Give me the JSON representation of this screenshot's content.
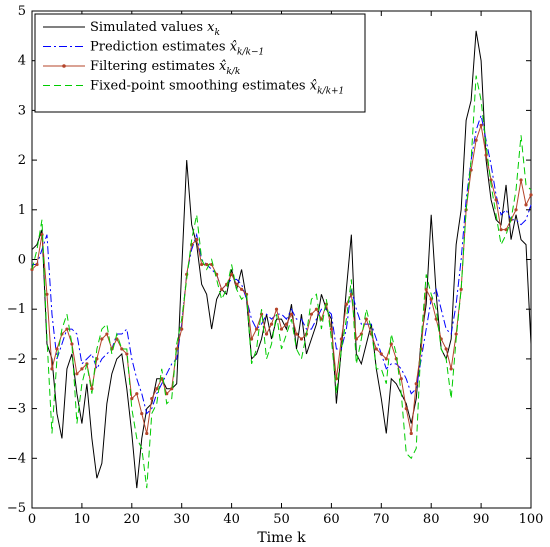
{
  "chart_data": {
    "type": "line",
    "xlabel": "Time k",
    "ylabel": "",
    "xlim": [
      0,
      100
    ],
    "ylim": [
      -5,
      5
    ],
    "x_ticks": [
      0,
      10,
      20,
      30,
      40,
      50,
      60,
      70,
      80,
      90,
      100
    ],
    "y_ticks": [
      -5,
      -4,
      -3,
      -2,
      -1,
      0,
      1,
      2,
      3,
      4,
      5
    ],
    "grid": false,
    "legend_position": "top-left",
    "series": [
      {
        "name": "Simulated values x_k",
        "legend_main": "Simulated values ",
        "legend_sym": "x",
        "legend_sub": "k",
        "color": "#000000",
        "style": "solid",
        "x": [
          0,
          1,
          2,
          3,
          4,
          5,
          6,
          7,
          8,
          9,
          10,
          11,
          12,
          13,
          14,
          15,
          16,
          17,
          18,
          19,
          20,
          21,
          22,
          23,
          24,
          25,
          26,
          27,
          28,
          29,
          30,
          31,
          32,
          33,
          34,
          35,
          36,
          37,
          38,
          39,
          40,
          41,
          42,
          43,
          44,
          45,
          46,
          47,
          48,
          49,
          50,
          51,
          52,
          53,
          54,
          55,
          56,
          57,
          58,
          59,
          60,
          61,
          62,
          63,
          64,
          65,
          66,
          67,
          68,
          69,
          70,
          71,
          72,
          73,
          74,
          75,
          76,
          77,
          78,
          79,
          80,
          81,
          82,
          83,
          84,
          85,
          86,
          87,
          88,
          89,
          90,
          91,
          92,
          93,
          94,
          95,
          96,
          97,
          98,
          99,
          100
        ],
        "values": [
          0.2,
          0.3,
          0.6,
          -1.7,
          -2.0,
          -3.1,
          -3.6,
          -2.2,
          -1.9,
          -2.7,
          -3.3,
          -2.5,
          -3.6,
          -4.4,
          -4.1,
          -2.9,
          -2.3,
          -2.0,
          -1.9,
          -2.6,
          -3.5,
          -4.6,
          -3.6,
          -3.0,
          -2.9,
          -2.4,
          -2.4,
          -2.6,
          -2.6,
          -2.5,
          -0.2,
          2.0,
          0.7,
          0.3,
          -0.5,
          -0.7,
          -1.4,
          -0.8,
          -0.6,
          -0.7,
          -0.2,
          -0.6,
          -0.2,
          -0.8,
          -2.0,
          -1.9,
          -1.6,
          -1.1,
          -1.6,
          -1.2,
          -1.2,
          -1.4,
          -0.9,
          -1.8,
          -1.1,
          -1.9,
          -1.6,
          -1.3,
          -0.7,
          -1.0,
          -1.2,
          -2.9,
          -1.8,
          -0.6,
          0.5,
          -1.9,
          -2.1,
          -1.7,
          -1.3,
          -2.2,
          -2.8,
          -3.5,
          -2.4,
          -2.5,
          -2.7,
          -2.9,
          -3.3,
          -2.8,
          -1.6,
          -0.9,
          0.9,
          -0.7,
          -1.8,
          -2.0,
          -1.6,
          0.3,
          1.0,
          2.8,
          3.2,
          4.6,
          4.0,
          2.0,
          1.2,
          0.8,
          0.7,
          1.5,
          0.4,
          0.9,
          0.4,
          0.3,
          -1.7
        ]
      },
      {
        "name": "Prediction estimates x̂_{k/k−1}",
        "legend_main": "Prediction estimates ",
        "legend_sym": "x̂",
        "legend_sub": "k/k−1",
        "color": "#0000ff",
        "style": "dashdot",
        "x": [
          0,
          1,
          2,
          3,
          4,
          5,
          6,
          7,
          8,
          9,
          10,
          11,
          12,
          13,
          14,
          15,
          16,
          17,
          18,
          19,
          20,
          21,
          22,
          23,
          24,
          25,
          26,
          27,
          28,
          29,
          30,
          31,
          32,
          33,
          34,
          35,
          36,
          37,
          38,
          39,
          40,
          41,
          42,
          43,
          44,
          45,
          46,
          47,
          48,
          49,
          50,
          51,
          52,
          53,
          54,
          55,
          56,
          57,
          58,
          59,
          60,
          61,
          62,
          63,
          64,
          65,
          66,
          67,
          68,
          69,
          70,
          71,
          72,
          73,
          74,
          75,
          76,
          77,
          78,
          79,
          80,
          81,
          82,
          83,
          84,
          85,
          86,
          87,
          88,
          89,
          90,
          91,
          92,
          93,
          94,
          95,
          96,
          97,
          98,
          99,
          100
        ],
        "values": [
          -0.1,
          -0.1,
          0.2,
          0.5,
          -1.1,
          -2.0,
          -1.7,
          -1.4,
          -1.4,
          -1.5,
          -2.1,
          -2.0,
          -1.9,
          -2.2,
          -2.0,
          -1.9,
          -1.8,
          -1.5,
          -1.5,
          -1.4,
          -2.0,
          -2.4,
          -2.7,
          -3.1,
          -3.0,
          -2.7,
          -2.5,
          -2.3,
          -2.1,
          -2.0,
          -1.3,
          -0.3,
          0.2,
          0.5,
          0.0,
          -0.1,
          -0.2,
          -0.3,
          -0.6,
          -0.5,
          -0.4,
          -0.4,
          -0.5,
          -0.8,
          -1.2,
          -1.4,
          -1.3,
          -1.1,
          -1.2,
          -1.1,
          -1.1,
          -1.2,
          -1.0,
          -1.2,
          -1.2,
          -1.4,
          -1.4,
          -1.2,
          -1.0,
          -1.0,
          -1.1,
          -1.8,
          -1.8,
          -1.4,
          -0.6,
          -1.0,
          -1.3,
          -1.3,
          -1.3,
          -1.6,
          -1.9,
          -2.2,
          -2.1,
          -2.1,
          -2.2,
          -2.4,
          -2.7,
          -2.6,
          -2.0,
          -1.4,
          -0.8,
          -0.6,
          -1.0,
          -1.4,
          -1.5,
          -0.9,
          0.0,
          1.2,
          2.0,
          2.6,
          2.9,
          2.4,
          1.9,
          1.3,
          0.9,
          1.0,
          0.8,
          0.8,
          0.7,
          0.8,
          1.1
        ]
      },
      {
        "name": "Filtering estimates x̂_{k/k}",
        "legend_main": "Filtering estimates ",
        "legend_sym": "x̂",
        "legend_sub": "k/k",
        "color": "#b4442a",
        "style": "solid-markers",
        "x": [
          0,
          1,
          2,
          3,
          4,
          5,
          6,
          7,
          8,
          9,
          10,
          11,
          12,
          13,
          14,
          15,
          16,
          17,
          18,
          19,
          20,
          21,
          22,
          23,
          24,
          25,
          26,
          27,
          28,
          29,
          30,
          31,
          32,
          33,
          34,
          35,
          36,
          37,
          38,
          39,
          40,
          41,
          42,
          43,
          44,
          45,
          46,
          47,
          48,
          49,
          50,
          51,
          52,
          53,
          54,
          55,
          56,
          57,
          58,
          59,
          60,
          61,
          62,
          63,
          64,
          65,
          66,
          67,
          68,
          69,
          70,
          71,
          72,
          73,
          74,
          75,
          76,
          77,
          78,
          79,
          80,
          81,
          82,
          83,
          84,
          85,
          86,
          87,
          88,
          89,
          90,
          91,
          92,
          93,
          94,
          95,
          96,
          97,
          98,
          99,
          100
        ],
        "values": [
          -0.2,
          -0.1,
          0.5,
          -0.7,
          -2.2,
          -1.8,
          -1.5,
          -1.4,
          -1.7,
          -2.3,
          -2.2,
          -2.1,
          -2.6,
          -2.0,
          -1.6,
          -1.5,
          -1.8,
          -1.6,
          -1.8,
          -1.9,
          -2.8,
          -2.7,
          -3.1,
          -3.5,
          -2.8,
          -2.6,
          -2.4,
          -2.7,
          -2.6,
          -1.8,
          -1.4,
          -0.3,
          0.3,
          0.4,
          -0.1,
          -0.1,
          -0.1,
          -0.3,
          -0.6,
          -0.5,
          -0.3,
          -0.5,
          -0.6,
          -0.7,
          -1.6,
          -1.4,
          -1.1,
          -1.5,
          -1.3,
          -1.0,
          -1.4,
          -1.3,
          -1.1,
          -1.5,
          -1.6,
          -1.5,
          -1.1,
          -1.0,
          -1.2,
          -0.9,
          -1.4,
          -2.4,
          -1.6,
          -0.9,
          -0.7,
          -1.6,
          -1.5,
          -1.2,
          -1.5,
          -1.8,
          -1.9,
          -2.0,
          -1.7,
          -2.0,
          -2.4,
          -3.0,
          -3.5,
          -2.5,
          -1.8,
          -0.6,
          -0.8,
          -1.2,
          -1.6,
          -1.8,
          -2.2,
          -1.5,
          -0.6,
          1.0,
          1.8,
          2.4,
          2.7,
          2.1,
          1.6,
          1.2,
          0.6,
          0.6,
          0.8,
          1.0,
          1.6,
          1.1,
          1.3
        ]
      },
      {
        "name": "Fixed-point smoothing estimates x̂_{k/k+1}",
        "legend_main": "Fixed-point smoothing estimates ",
        "legend_sym": "x̂",
        "legend_sub": "k/k+1",
        "color": "#00cc00",
        "style": "dashed",
        "x": [
          0,
          1,
          2,
          3,
          4,
          5,
          6,
          7,
          8,
          9,
          10,
          11,
          12,
          13,
          14,
          15,
          16,
          17,
          18,
          19,
          20,
          21,
          22,
          23,
          24,
          25,
          26,
          27,
          28,
          29,
          30,
          31,
          32,
          33,
          34,
          35,
          36,
          37,
          38,
          39,
          40,
          41,
          42,
          43,
          44,
          45,
          46,
          47,
          48,
          49,
          50,
          51,
          52,
          53,
          54,
          55,
          56,
          57,
          58,
          59,
          60,
          61,
          62,
          63,
          64,
          65,
          66,
          67,
          68,
          69,
          70,
          71,
          72,
          73,
          74,
          75,
          76,
          77,
          78,
          79,
          80,
          81,
          82,
          83,
          84,
          85,
          86,
          87,
          88,
          89,
          90,
          91,
          92,
          93,
          94,
          95,
          96,
          97,
          98,
          99,
          100
        ],
        "values": [
          -0.2,
          0.2,
          0.8,
          -1.6,
          -3.5,
          -2.0,
          -1.4,
          -1.1,
          -1.7,
          -3.3,
          -2.5,
          -2.1,
          -2.7,
          -1.8,
          -1.4,
          -1.3,
          -1.9,
          -1.5,
          -1.8,
          -1.8,
          -3.0,
          -3.6,
          -3.8,
          -4.6,
          -3.1,
          -2.9,
          -2.2,
          -2.9,
          -2.8,
          -1.7,
          -1.2,
          -0.4,
          0.4,
          0.9,
          0.0,
          -0.2,
          0.0,
          -0.4,
          -0.8,
          -0.6,
          -0.1,
          -0.6,
          -0.8,
          -0.7,
          -2.1,
          -1.8,
          -1.0,
          -2.0,
          -1.7,
          -1.1,
          -1.8,
          -1.5,
          -1.2,
          -1.8,
          -2.0,
          -1.5,
          -0.8,
          -0.7,
          -1.4,
          -0.8,
          -1.6,
          -2.7,
          -1.8,
          -1.2,
          -0.4,
          -2.1,
          -1.6,
          -1.0,
          -1.4,
          -2.2,
          -2.2,
          -2.5,
          -1.5,
          -1.9,
          -2.7,
          -3.9,
          -4.0,
          -3.8,
          -1.6,
          -0.3,
          -0.7,
          -1.0,
          -1.8,
          -2.0,
          -2.8,
          -1.6,
          -0.6,
          1.0,
          2.0,
          3.7,
          3.2,
          2.3,
          1.5,
          0.9,
          0.3,
          0.5,
          0.8,
          1.4,
          2.5,
          1.5,
          1.4
        ]
      }
    ]
  }
}
